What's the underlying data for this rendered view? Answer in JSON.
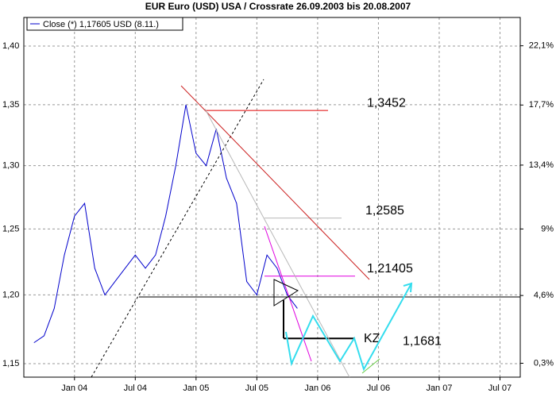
{
  "chart_data": {
    "type": "line",
    "title": "EUR Euro (USD) USA / Crossrate 26.09.2003 bis 20.08.2007",
    "x": [
      "2003-09",
      "2003-10",
      "2003-11",
      "2003-12",
      "2004-01",
      "2004-02",
      "2004-03",
      "2004-04",
      "2004-05",
      "2004-06",
      "2004-07",
      "2004-08",
      "2004-09",
      "2004-10",
      "2004-11",
      "2004-12",
      "2005-01",
      "2005-02",
      "2005-03",
      "2005-04",
      "2005-05",
      "2005-06",
      "2005-07",
      "2005-08",
      "2005-09",
      "2005-10",
      "2005-11"
    ],
    "series": [
      {
        "name": "Close (*) 1,17605 USD (8.11.)",
        "color": "#0000cc",
        "values": [
          1.165,
          1.17,
          1.19,
          1.23,
          1.26,
          1.27,
          1.22,
          1.2,
          1.21,
          1.22,
          1.23,
          1.22,
          1.23,
          1.26,
          1.3,
          1.35,
          1.31,
          1.3,
          1.33,
          1.29,
          1.27,
          1.21,
          1.2,
          1.23,
          1.22,
          1.2,
          1.19
        ]
      }
    ],
    "xlim": [
      "2003-08",
      "2007-09"
    ],
    "xticks": [
      {
        "value": "2004-01",
        "label": "Jan 04"
      },
      {
        "value": "2004-07",
        "label": "Jul 04"
      },
      {
        "value": "2005-01",
        "label": "Jan 05"
      },
      {
        "value": "2005-07",
        "label": "Jul 05"
      },
      {
        "value": "2006-01",
        "label": "Jan 06"
      },
      {
        "value": "2006-07",
        "label": "Jul 06"
      },
      {
        "value": "2007-01",
        "label": "Jan 07"
      },
      {
        "value": "2007-07",
        "label": "Jul 07"
      }
    ],
    "ylim": [
      1.1404,
      1.425
    ],
    "yticks": [
      {
        "value": 1.15,
        "label": "1,15"
      },
      {
        "value": 1.2,
        "label": "1,20"
      },
      {
        "value": 1.25,
        "label": "1,25"
      },
      {
        "value": 1.3,
        "label": "1,30"
      },
      {
        "value": 1.35,
        "label": "1,35"
      },
      {
        "value": 1.4,
        "label": "1,40"
      }
    ],
    "y2lim": [
      -0.56,
      24.26
    ],
    "y2ticks": [
      {
        "value": 0.3,
        "label": "0,3%"
      },
      {
        "value": 4.6,
        "label": "4,6%"
      },
      {
        "value": 9,
        "label": "9%"
      },
      {
        "value": 13.4,
        "label": "13,4%"
      },
      {
        "value": 17.7,
        "label": "17,7%"
      },
      {
        "value": 22.1,
        "label": "22,1%"
      }
    ],
    "log": true,
    "grid": true,
    "legend": "upper left",
    "levels": [
      {
        "value": 1.3452,
        "label": "1,3452",
        "color": "#e00000"
      },
      {
        "value": 1.2585,
        "label": "1,2585",
        "color": "#b8b8b8"
      },
      {
        "value": 1.21405,
        "label": "1,21405",
        "color": "#e000e0"
      },
      {
        "value": 1.1681,
        "label": "1,1681",
        "color": "#000000"
      }
    ],
    "annotations": [
      {
        "text": "KZ"
      }
    ]
  }
}
